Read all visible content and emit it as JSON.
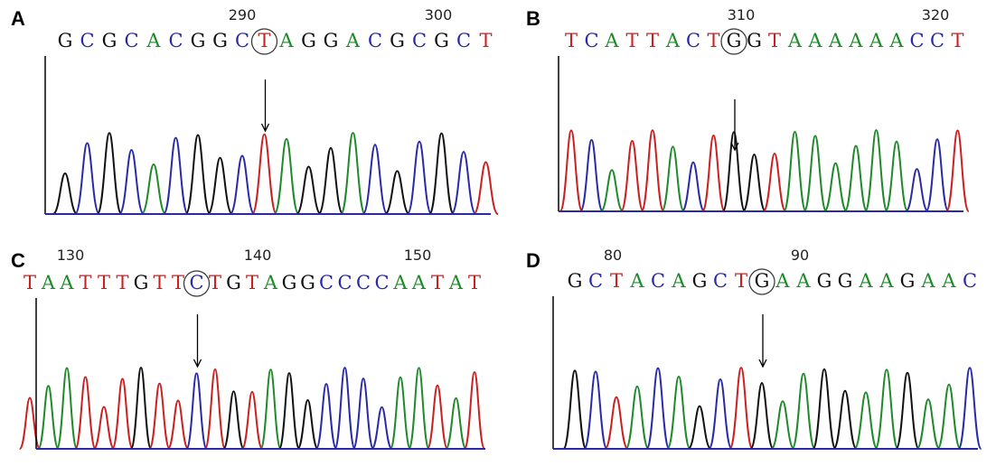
{
  "panels": [
    {
      "label": "A",
      "positions": [
        "290",
        "300"
      ],
      "sequence": "GCGCACGGCTAGGACGCGCT"
    },
    {
      "label": "B",
      "positions": [
        "310",
        "320"
      ],
      "sequence": "TCATTACTGGTAAAAAACCT"
    },
    {
      "label": "C",
      "positions": [
        "130",
        "140",
        "150"
      ],
      "sequence": "TAATTTGTTCTGTAGGCCCCAATAT"
    },
    {
      "label": "D",
      "positions": [
        "80",
        "90"
      ],
      "sequence": "GCTACAGCTGAAGGAAGAAC"
    }
  ],
  "base_colors": {
    "G": "#111111",
    "C": "#2a2aa8",
    "A": "#1f8a2a",
    "T": "#cc2020"
  }
}
